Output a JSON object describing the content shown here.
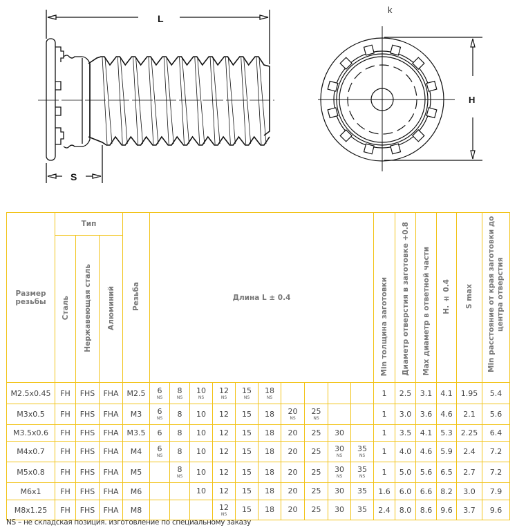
{
  "drawing": {
    "side_view_label_length": "L",
    "side_view_label_s": "S",
    "end_view_label_k": "k",
    "end_view_label_h": "H"
  },
  "table": {
    "headers": {
      "size": "Размер резьбы",
      "type": "Тип",
      "steel": "Сталь",
      "stainless": "Нержавеющая сталь",
      "aluminium": "Алюминий",
      "thread": "Резьба",
      "length": "Длина L ± 0.4",
      "min_thickness": "Min толщина заготовки",
      "hole_diameter": "Диаметр отверстия в заготовке +0.8",
      "max_mating_diameter": "Max диаметр в ответной части",
      "h": "H. ± 0.4",
      "s_max": "S max",
      "min_edge_distance": "Min расстояние от края заготовки до центра отверстия"
    },
    "ns_label": "NS",
    "rows": [
      {
        "size": "M2.5x0.45",
        "steel": "FH",
        "stainless": "FHS",
        "aluminium": "FHA",
        "thread": "M2.5",
        "lengths": [
          {
            "v": "6",
            "ns": true
          },
          {
            "v": "8",
            "ns": true
          },
          {
            "v": "10",
            "ns": true
          },
          {
            "v": "12",
            "ns": true
          },
          {
            "v": "15",
            "ns": true
          },
          {
            "v": "18",
            "ns": true
          },
          {
            "v": "",
            "ns": false
          },
          {
            "v": "",
            "ns": false
          },
          {
            "v": "",
            "ns": false
          },
          {
            "v": "",
            "ns": false
          }
        ],
        "min_thickness": "1",
        "hole_diameter": "2.5",
        "max_mating_diameter": "3.1",
        "h": "4.1",
        "s_max": "1.95",
        "min_edge_distance": "5.4"
      },
      {
        "size": "M3x0.5",
        "steel": "FH",
        "stainless": "FHS",
        "aluminium": "FHA",
        "thread": "M3",
        "lengths": [
          {
            "v": "6",
            "ns": true
          },
          {
            "v": "8",
            "ns": false
          },
          {
            "v": "10",
            "ns": false
          },
          {
            "v": "12",
            "ns": false
          },
          {
            "v": "15",
            "ns": false
          },
          {
            "v": "18",
            "ns": false
          },
          {
            "v": "20",
            "ns": true
          },
          {
            "v": "25",
            "ns": true
          },
          {
            "v": "",
            "ns": false
          },
          {
            "v": "",
            "ns": false
          }
        ],
        "min_thickness": "1",
        "hole_diameter": "3.0",
        "max_mating_diameter": "3.6",
        "h": "4.6",
        "s_max": "2.1",
        "min_edge_distance": "5.6"
      },
      {
        "size": "M3.5x0.6",
        "steel": "FH",
        "stainless": "FHS",
        "aluminium": "FHA",
        "thread": "M3.5",
        "lengths": [
          {
            "v": "6",
            "ns": false
          },
          {
            "v": "8",
            "ns": false
          },
          {
            "v": "10",
            "ns": false
          },
          {
            "v": "12",
            "ns": false
          },
          {
            "v": "15",
            "ns": false
          },
          {
            "v": "18",
            "ns": false
          },
          {
            "v": "20",
            "ns": false
          },
          {
            "v": "25",
            "ns": false
          },
          {
            "v": "30",
            "ns": false
          },
          {
            "v": "",
            "ns": false
          }
        ],
        "min_thickness": "1",
        "hole_diameter": "3.5",
        "max_mating_diameter": "4.1",
        "h": "5.3",
        "s_max": "2.25",
        "min_edge_distance": "6.4"
      },
      {
        "size": "M4x0.7",
        "steel": "FH",
        "stainless": "FHS",
        "aluminium": "FHA",
        "thread": "M4",
        "lengths": [
          {
            "v": "6",
            "ns": true
          },
          {
            "v": "8",
            "ns": false
          },
          {
            "v": "10",
            "ns": false
          },
          {
            "v": "12",
            "ns": false
          },
          {
            "v": "15",
            "ns": false
          },
          {
            "v": "18",
            "ns": false
          },
          {
            "v": "20",
            "ns": false
          },
          {
            "v": "25",
            "ns": false
          },
          {
            "v": "30",
            "ns": true
          },
          {
            "v": "35",
            "ns": true
          }
        ],
        "min_thickness": "1",
        "hole_diameter": "4.0",
        "max_mating_diameter": "4.6",
        "h": "5.9",
        "s_max": "2.4",
        "min_edge_distance": "7.2"
      },
      {
        "size": "M5x0.8",
        "steel": "FH",
        "stainless": "FHS",
        "aluminium": "FHA",
        "thread": "M5",
        "lengths": [
          {
            "v": "",
            "ns": false
          },
          {
            "v": "8",
            "ns": true
          },
          {
            "v": "10",
            "ns": false
          },
          {
            "v": "12",
            "ns": false
          },
          {
            "v": "15",
            "ns": false
          },
          {
            "v": "18",
            "ns": false
          },
          {
            "v": "20",
            "ns": false
          },
          {
            "v": "25",
            "ns": false
          },
          {
            "v": "30",
            "ns": true
          },
          {
            "v": "35",
            "ns": true
          }
        ],
        "min_thickness": "1",
        "hole_diameter": "5.0",
        "max_mating_diameter": "5.6",
        "h": "6.5",
        "s_max": "2.7",
        "min_edge_distance": "7.2"
      },
      {
        "size": "M6x1",
        "steel": "FH",
        "stainless": "FHS",
        "aluminium": "FHA",
        "thread": "M6",
        "lengths": [
          {
            "v": "",
            "ns": false
          },
          {
            "v": "",
            "ns": false
          },
          {
            "v": "10",
            "ns": false
          },
          {
            "v": "12",
            "ns": false
          },
          {
            "v": "15",
            "ns": false
          },
          {
            "v": "18",
            "ns": false
          },
          {
            "v": "20",
            "ns": false
          },
          {
            "v": "25",
            "ns": false
          },
          {
            "v": "30",
            "ns": false
          },
          {
            "v": "35",
            "ns": false
          }
        ],
        "min_thickness": "1.6",
        "hole_diameter": "6.0",
        "max_mating_diameter": "6.6",
        "h": "8.2",
        "s_max": "3.0",
        "min_edge_distance": "7.9"
      },
      {
        "size": "M8x1.25",
        "steel": "FH",
        "stainless": "FHS",
        "aluminium": "FHA",
        "thread": "M8",
        "lengths": [
          {
            "v": "",
            "ns": false
          },
          {
            "v": "",
            "ns": false
          },
          {
            "v": "",
            "ns": false
          },
          {
            "v": "12",
            "ns": true
          },
          {
            "v": "15",
            "ns": false
          },
          {
            "v": "18",
            "ns": false
          },
          {
            "v": "20",
            "ns": false
          },
          {
            "v": "25",
            "ns": false
          },
          {
            "v": "30",
            "ns": false
          },
          {
            "v": "35",
            "ns": false
          }
        ],
        "min_thickness": "2.4",
        "hole_diameter": "8.0",
        "max_mating_diameter": "8.6",
        "h": "9.6",
        "s_max": "3.7",
        "min_edge_distance": "9.6"
      }
    ]
  },
  "footnote": "NS – не складская позиция. изготовление по специальному заказу",
  "colors": {
    "table_border": "#f2c318",
    "text": "#444444"
  }
}
